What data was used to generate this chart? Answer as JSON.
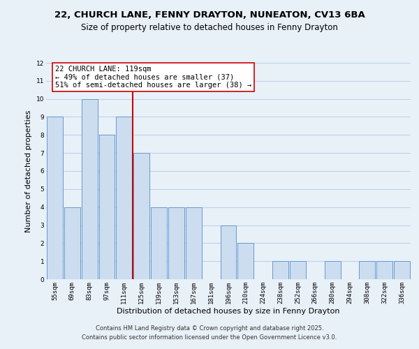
{
  "title1": "22, CHURCH LANE, FENNY DRAYTON, NUNEATON, CV13 6BA",
  "title2": "Size of property relative to detached houses in Fenny Drayton",
  "xlabel": "Distribution of detached houses by size in Fenny Drayton",
  "ylabel": "Number of detached properties",
  "bar_labels": [
    "55sqm",
    "69sqm",
    "83sqm",
    "97sqm",
    "111sqm",
    "125sqm",
    "139sqm",
    "153sqm",
    "167sqm",
    "181sqm",
    "196sqm",
    "210sqm",
    "224sqm",
    "238sqm",
    "252sqm",
    "266sqm",
    "280sqm",
    "294sqm",
    "308sqm",
    "322sqm",
    "336sqm"
  ],
  "bar_heights": [
    9,
    4,
    10,
    8,
    9,
    7,
    4,
    4,
    4,
    0,
    3,
    2,
    0,
    1,
    1,
    0,
    1,
    0,
    1,
    1,
    1
  ],
  "bar_color": "#ccddf0",
  "bar_edge_color": "#6699cc",
  "grid_color": "#b8cfe8",
  "bg_color": "#e8f0f8",
  "vline_x": 4.5,
  "vline_color": "#cc0000",
  "annotation_title": "22 CHURCH LANE: 119sqm",
  "annotation_line1": "← 49% of detached houses are smaller (37)",
  "annotation_line2": "51% of semi-detached houses are larger (38) →",
  "annotation_box_color": "#ffffff",
  "annotation_box_edge": "#cc0000",
  "ylim": [
    0,
    12
  ],
  "yticks": [
    0,
    1,
    2,
    3,
    4,
    5,
    6,
    7,
    8,
    9,
    10,
    11,
    12
  ],
  "footer1": "Contains HM Land Registry data © Crown copyright and database right 2025.",
  "footer2": "Contains public sector information licensed under the Open Government Licence v3.0.",
  "title_fontsize": 9.5,
  "subtitle_fontsize": 8.5,
  "axis_label_fontsize": 8,
  "tick_fontsize": 6.5,
  "annotation_fontsize": 7.5,
  "footer_fontsize": 6
}
